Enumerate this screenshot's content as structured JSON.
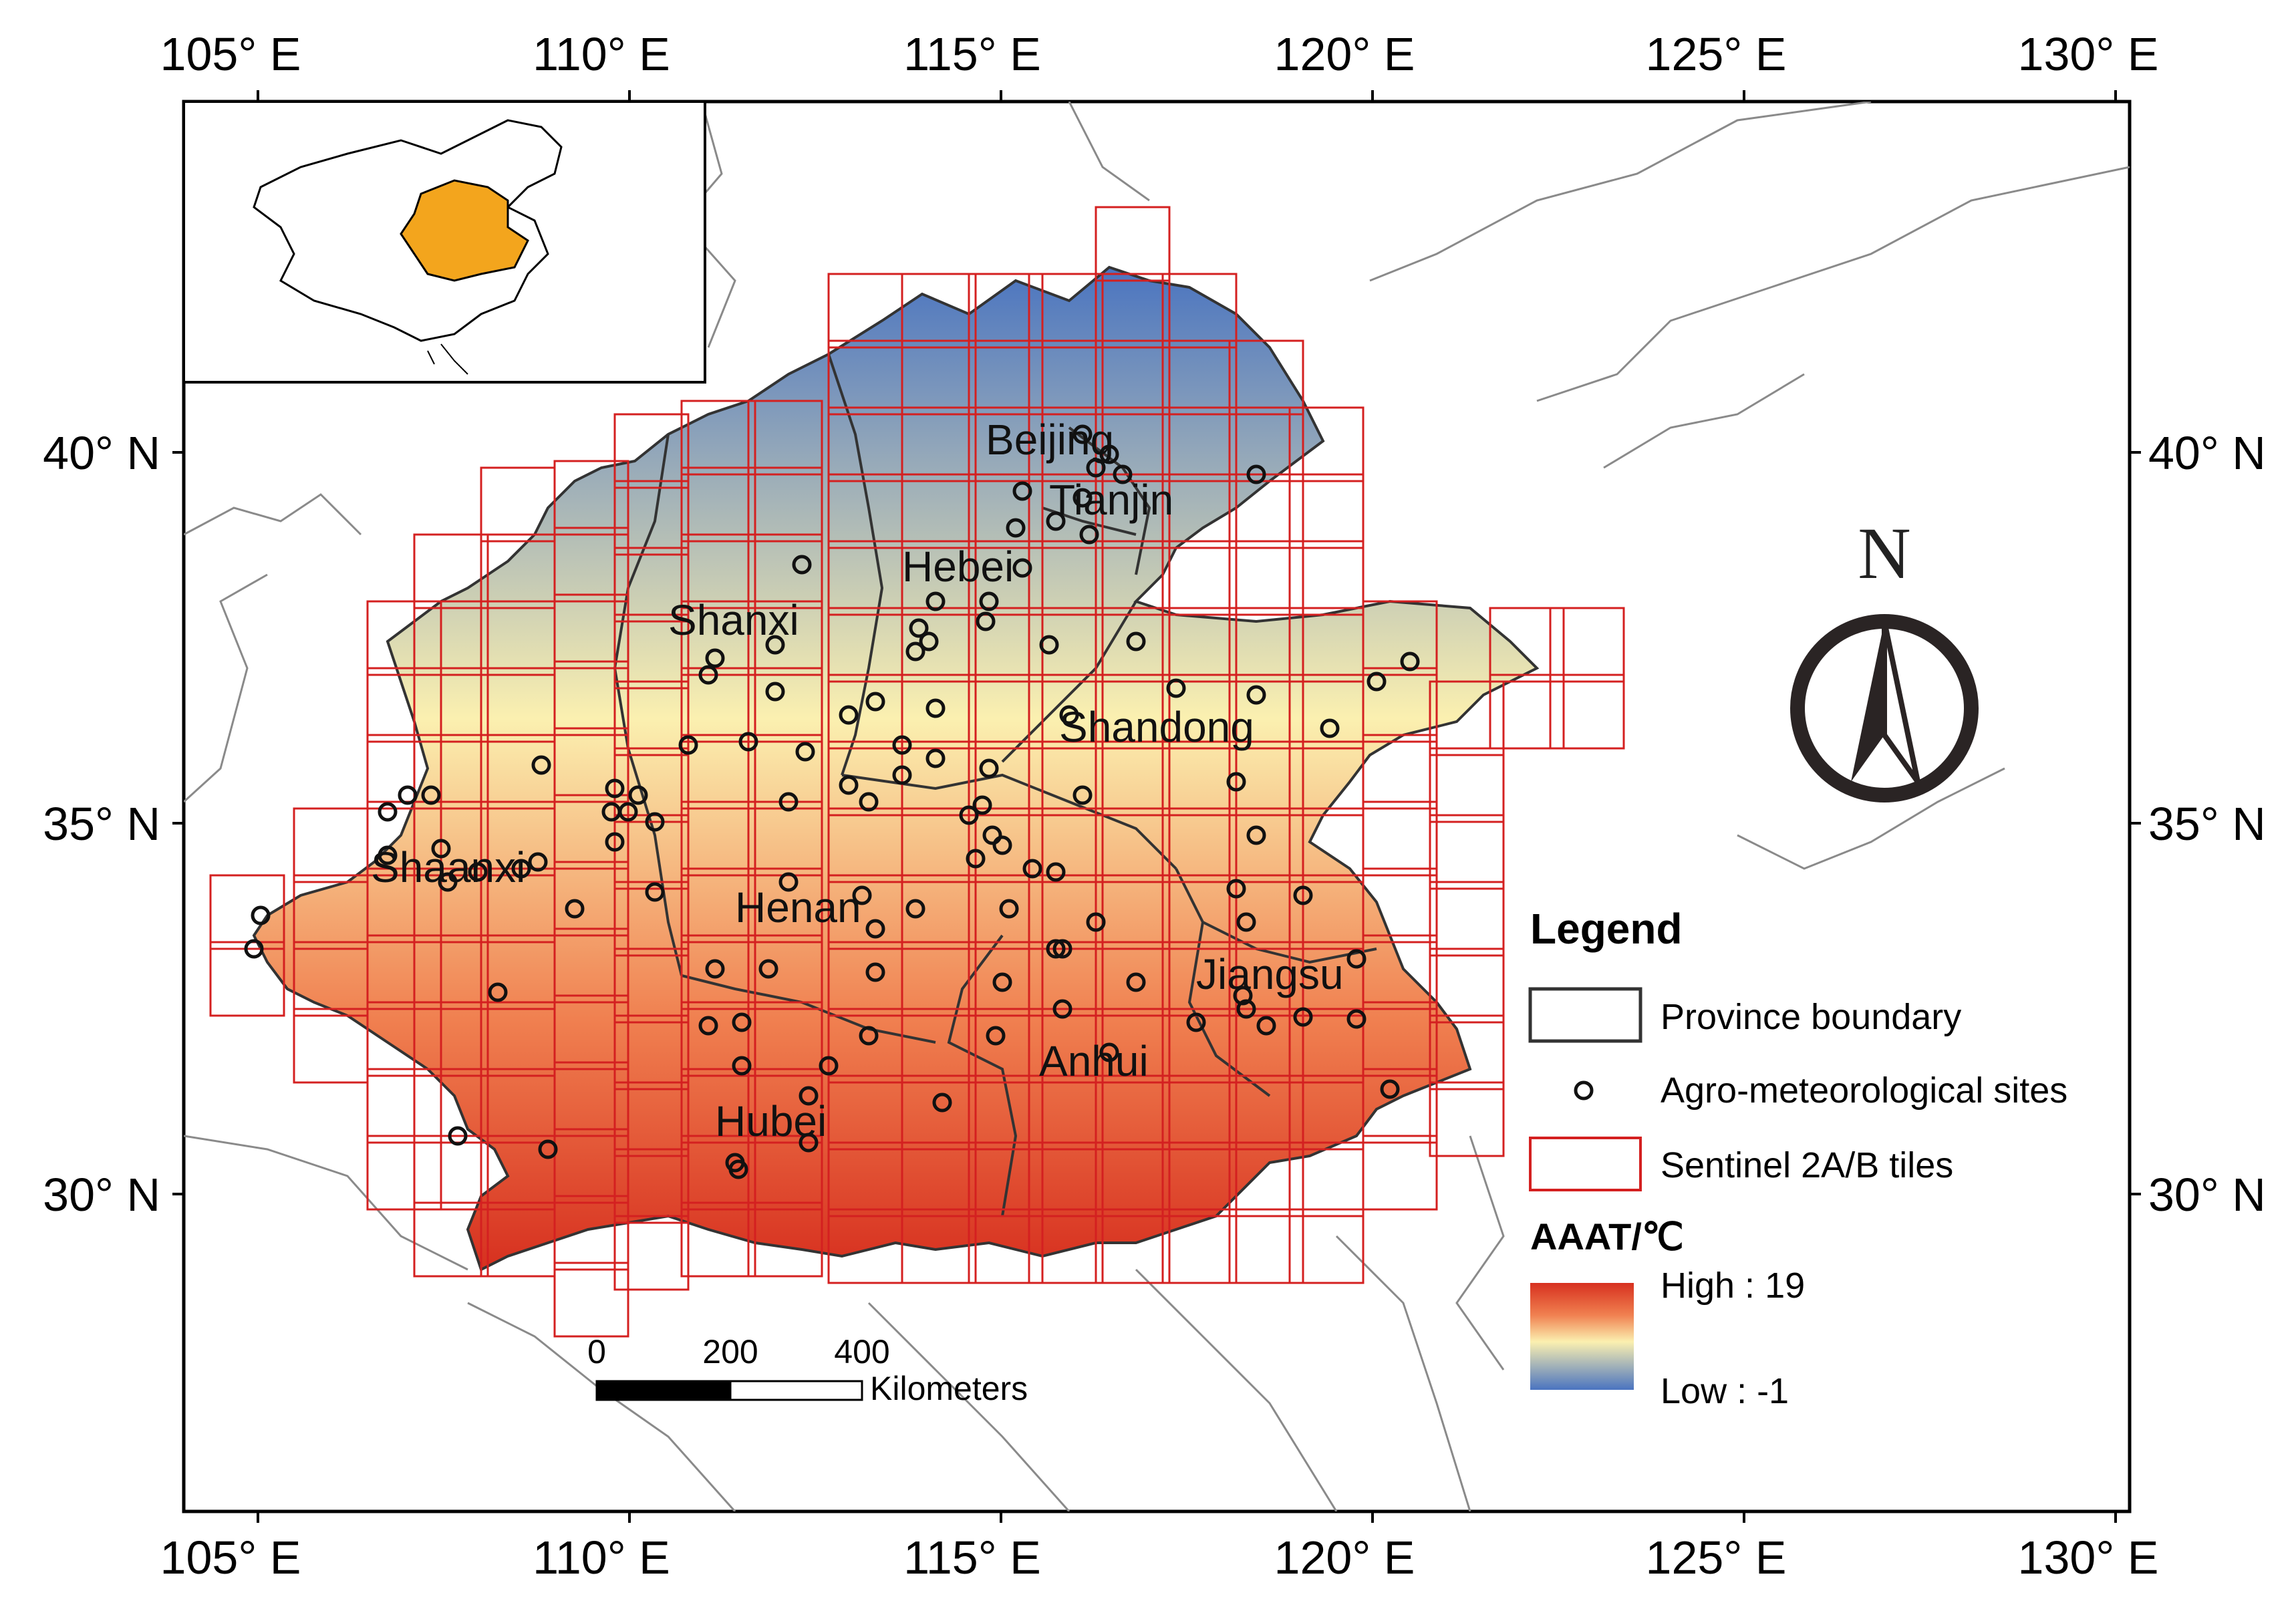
{
  "axes": {
    "top": [
      "105° E",
      "110° E",
      "115° E",
      "120° E",
      "125° E",
      "130° E"
    ],
    "bottom": [
      "105° E",
      "110° E",
      "115° E",
      "120° E",
      "125° E",
      "130° E"
    ],
    "left": [
      "40° N",
      "35° N",
      "30° N"
    ],
    "right": [
      "40° N",
      "35° N",
      "30° N"
    ]
  },
  "provinces": [
    "Beijing",
    "Tianjin",
    "Hebei",
    "Shanxi",
    "Shandong",
    "Shaanxi",
    "Henan",
    "Jiangsu",
    "Anhui",
    "Hubei"
  ],
  "north_arrow": {
    "letter": "N"
  },
  "legend": {
    "title": "Legend",
    "items": [
      {
        "label": "Province boundary",
        "symbol": "black-rectangle"
      },
      {
        "label": "Agro-meteorological sites",
        "symbol": "circle"
      },
      {
        "label": "Sentinel 2A/B tiles",
        "symbol": "red-rectangle"
      }
    ],
    "ramp_title": "AAAT/℃",
    "ramp_high": "High : 19",
    "ramp_low": "Low : -1"
  },
  "scale_bar": {
    "ticks": [
      "0",
      "200",
      "400"
    ],
    "unit": "Kilometers"
  },
  "colors": {
    "high": "#d7301f",
    "mid_high": "#f08050",
    "mid": "#fbf0b0",
    "low": "#4a74c0",
    "tile_border": "#d42020",
    "inset_highlight": "#f3a51d"
  }
}
